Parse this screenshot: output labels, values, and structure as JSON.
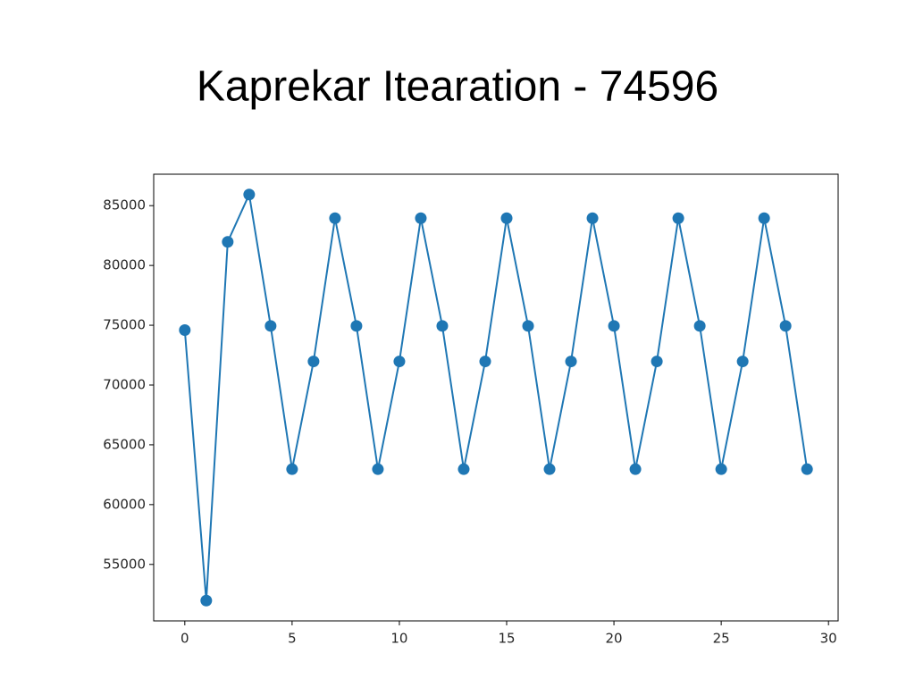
{
  "chart_data": {
    "type": "line",
    "title": "Kaprekar Itearation - 74596",
    "x": [
      0,
      1,
      2,
      3,
      4,
      5,
      6,
      7,
      8,
      9,
      10,
      11,
      12,
      13,
      14,
      15,
      16,
      17,
      18,
      19,
      20,
      21,
      22,
      23,
      24,
      25,
      26,
      27,
      28,
      29
    ],
    "values": [
      74596,
      51975,
      81972,
      85932,
      74943,
      62964,
      71973,
      83952,
      74943,
      62964,
      71973,
      83952,
      74943,
      62964,
      71973,
      83952,
      74943,
      62964,
      71973,
      83952,
      74943,
      62964,
      71973,
      83952,
      74943,
      62964,
      71973,
      83952,
      74943,
      62964
    ],
    "color": "#1f77b4",
    "marker": "o",
    "xlim": [
      -1.45,
      30.45
    ],
    "xticks": [
      0,
      5,
      10,
      15,
      20,
      25,
      30
    ],
    "ylim": [
      50277,
      87630
    ],
    "yticks": [
      55000,
      60000,
      65000,
      70000,
      75000,
      80000,
      85000
    ],
    "grid": false
  }
}
